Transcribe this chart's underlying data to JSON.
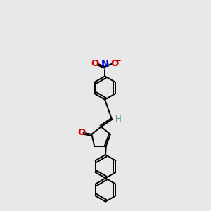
{
  "bg_color": "#e8e8e8",
  "bond_color": "#000000",
  "o_color": "#cc0000",
  "n_color": "#0000cc",
  "h_color": "#4a9090",
  "line_width": 1.4,
  "font_size": 8.5,
  "xlim": [
    0,
    10
  ],
  "ylim": [
    0,
    18
  ]
}
